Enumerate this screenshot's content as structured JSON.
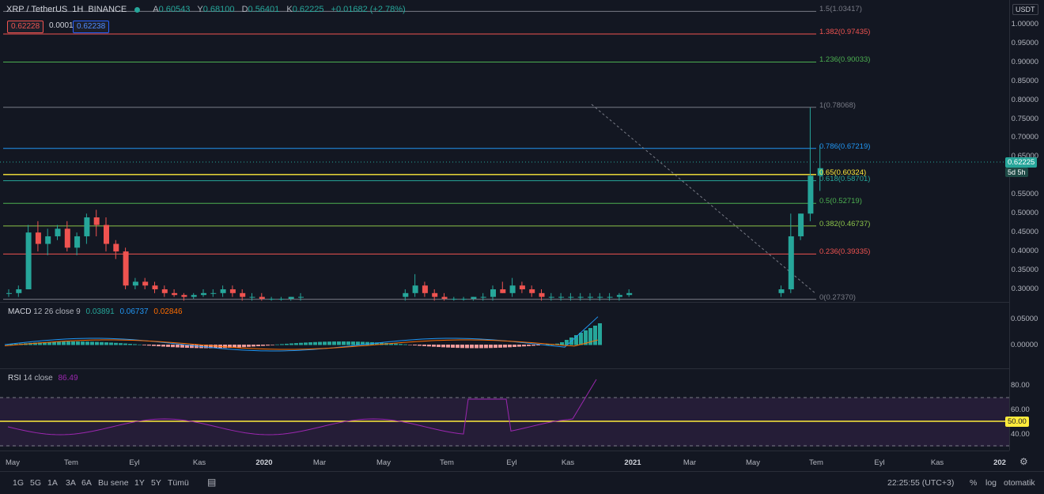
{
  "header": {
    "symbol": "XRP / TetherUS",
    "interval": "1H",
    "exchange": "BINANCE",
    "ohlc": {
      "o_label": "A",
      "o": "0.60543",
      "h_label": "Y",
      "h": "0.68100",
      "l_label": "D",
      "l": "0.56401",
      "c_label": "K",
      "c": "0.62225",
      "change": "+0.01682 (+2.78%)"
    }
  },
  "trade": {
    "sell": "0.62228",
    "spread": "0.00010",
    "buy": "0.62238"
  },
  "currency": "USDT",
  "colors": {
    "up": "#26a69a",
    "down": "#ef5350",
    "bg": "#131722",
    "grid": "#2a2e39",
    "macd": "#2196f3",
    "signal": "#ff6d00",
    "rsi": "#9c27b0"
  },
  "price_axis": {
    "ticks": [
      "1.00000",
      "0.95000",
      "0.90000",
      "0.85000",
      "0.80000",
      "0.75000",
      "0.70000",
      "0.65000",
      "0.55000",
      "0.50000",
      "0.45000",
      "0.40000",
      "0.35000",
      "0.30000"
    ],
    "current_price": "0.62225",
    "countdown": "5d 5h"
  },
  "fib": [
    {
      "label": "1.5(1.03417)",
      "color": "#787b86"
    },
    {
      "label": "1.382(0.97435)",
      "color": "#ef5350"
    },
    {
      "label": "1.236(0.90033)",
      "color": "#4caf50"
    },
    {
      "label": "1(0.78068)",
      "color": "#787b86"
    },
    {
      "label": "0.786(0.67219)",
      "color": "#2196f3"
    },
    {
      "label": "0.65(0.60324)",
      "color": "#ffeb3b"
    },
    {
      "label": "0.618(0.58701)",
      "color": "#26a69a"
    },
    {
      "label": "0.5(0.52719)",
      "color": "#4caf50"
    },
    {
      "label": "0.382(0.46737)",
      "color": "#8bc34a"
    },
    {
      "label": "0.236(0.39335)",
      "color": "#ef5350"
    },
    {
      "label": "0(0.27370)",
      "color": "#787b86"
    }
  ],
  "macd": {
    "title": "MACD",
    "params": "12 26 close 9",
    "v1": "0.03891",
    "v2": "0.06737",
    "v3": "0.02846",
    "ticks": [
      "0.05000",
      "0.00000"
    ]
  },
  "rsi": {
    "title": "RSI",
    "params": "14 close",
    "value": "86.49",
    "ticks": [
      "80.00",
      "60.00",
      "40.00"
    ],
    "level": "50.00"
  },
  "time_axis": [
    {
      "label": "May",
      "year": false
    },
    {
      "label": "Tem",
      "year": false
    },
    {
      "label": "Eyl",
      "year": false
    },
    {
      "label": "Kas",
      "year": false
    },
    {
      "label": "2020",
      "year": true
    },
    {
      "label": "Mar",
      "year": false
    },
    {
      "label": "May",
      "year": false
    },
    {
      "label": "Tem",
      "year": false
    },
    {
      "label": "Eyl",
      "year": false
    },
    {
      "label": "Kas",
      "year": false
    },
    {
      "label": "2021",
      "year": true
    },
    {
      "label": "Mar",
      "year": false
    },
    {
      "label": "May",
      "year": false
    },
    {
      "label": "Tem",
      "year": false
    },
    {
      "label": "Eyl",
      "year": false
    },
    {
      "label": "Kas",
      "year": false
    },
    {
      "label": "202",
      "year": true
    }
  ],
  "ranges": [
    "1G",
    "5G",
    "1A",
    "3A",
    "6A",
    "Bu sene",
    "1Y",
    "5Y",
    "Tümü"
  ],
  "clock": "22:25:55 (UTC+3)",
  "scale": {
    "percent": "%",
    "log": "log",
    "auto": "otomatik"
  },
  "chart_data": {
    "type": "candlestick",
    "approx": true,
    "candles": [
      [
        0.29,
        0.3,
        0.28,
        0.29
      ],
      [
        0.29,
        0.31,
        0.28,
        0.3
      ],
      [
        0.3,
        0.47,
        0.3,
        0.45
      ],
      [
        0.45,
        0.48,
        0.4,
        0.42
      ],
      [
        0.42,
        0.46,
        0.39,
        0.44
      ],
      [
        0.44,
        0.47,
        0.43,
        0.46
      ],
      [
        0.46,
        0.48,
        0.4,
        0.41
      ],
      [
        0.41,
        0.45,
        0.39,
        0.44
      ],
      [
        0.44,
        0.5,
        0.42,
        0.49
      ],
      [
        0.49,
        0.51,
        0.44,
        0.47
      ],
      [
        0.47,
        0.49,
        0.4,
        0.42
      ],
      [
        0.42,
        0.43,
        0.38,
        0.4
      ],
      [
        0.4,
        0.41,
        0.3,
        0.31
      ],
      [
        0.31,
        0.33,
        0.3,
        0.32
      ],
      [
        0.32,
        0.33,
        0.3,
        0.31
      ],
      [
        0.31,
        0.32,
        0.29,
        0.3
      ],
      [
        0.3,
        0.31,
        0.28,
        0.29
      ],
      [
        0.29,
        0.3,
        0.28,
        0.285
      ],
      [
        0.285,
        0.29,
        0.27,
        0.28
      ],
      [
        0.28,
        0.29,
        0.275,
        0.285
      ],
      [
        0.285,
        0.3,
        0.28,
        0.29
      ],
      [
        0.29,
        0.3,
        0.28,
        0.29
      ],
      [
        0.29,
        0.31,
        0.28,
        0.3
      ],
      [
        0.3,
        0.31,
        0.28,
        0.29
      ],
      [
        0.29,
        0.3,
        0.27,
        0.28
      ],
      [
        0.28,
        0.29,
        0.27,
        0.28
      ],
      [
        0.28,
        0.29,
        0.27,
        0.275
      ],
      [
        0.275,
        0.28,
        0.27,
        0.275
      ],
      [
        0.275,
        0.28,
        0.27,
        0.275
      ],
      [
        0.275,
        0.28,
        0.27,
        0.28
      ],
      [
        0.28,
        0.29,
        0.27,
        0.28
      ],
      [
        0.28,
        0.3,
        0.27,
        0.29
      ],
      [
        0.29,
        0.34,
        0.28,
        0.31
      ],
      [
        0.31,
        0.32,
        0.28,
        0.29
      ],
      [
        0.29,
        0.3,
        0.27,
        0.28
      ],
      [
        0.28,
        0.29,
        0.27,
        0.275
      ],
      [
        0.275,
        0.28,
        0.27,
        0.275
      ],
      [
        0.275,
        0.28,
        0.27,
        0.275
      ],
      [
        0.275,
        0.28,
        0.27,
        0.28
      ],
      [
        0.28,
        0.29,
        0.27,
        0.28
      ],
      [
        0.28,
        0.31,
        0.27,
        0.3
      ],
      [
        0.3,
        0.32,
        0.29,
        0.29
      ],
      [
        0.29,
        0.33,
        0.28,
        0.31
      ],
      [
        0.31,
        0.32,
        0.29,
        0.3
      ],
      [
        0.3,
        0.31,
        0.28,
        0.29
      ],
      [
        0.29,
        0.3,
        0.27,
        0.28
      ],
      [
        0.28,
        0.29,
        0.27,
        0.28
      ],
      [
        0.28,
        0.29,
        0.27,
        0.28
      ],
      [
        0.28,
        0.29,
        0.27,
        0.28
      ],
      [
        0.28,
        0.29,
        0.27,
        0.28
      ],
      [
        0.28,
        0.29,
        0.27,
        0.28
      ],
      [
        0.28,
        0.29,
        0.27,
        0.28
      ],
      [
        0.28,
        0.29,
        0.27,
        0.28
      ],
      [
        0.28,
        0.29,
        0.27,
        0.285
      ],
      [
        0.285,
        0.3,
        0.28,
        0.29
      ],
      [
        0.29,
        0.31,
        0.28,
        0.3
      ],
      [
        0.3,
        0.5,
        0.29,
        0.44
      ],
      [
        0.44,
        0.5,
        0.43,
        0.5
      ],
      [
        0.5,
        0.78,
        0.48,
        0.6
      ],
      [
        0.6,
        0.68,
        0.56,
        0.62
      ]
    ]
  }
}
